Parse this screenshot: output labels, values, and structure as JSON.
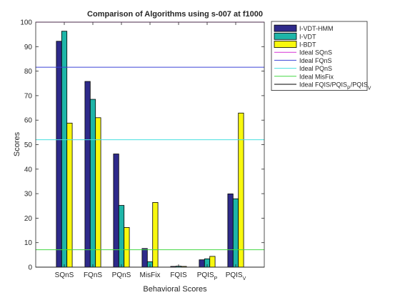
{
  "chart_data": {
    "type": "bar",
    "title": "Comparison of Algorithms using s-007 at f1000",
    "xlabel": "Behavioral Scores",
    "ylabel": "Scores",
    "ylim": [
      0,
      100
    ],
    "yticks": [
      "0",
      "10",
      "20",
      "30",
      "40",
      "50",
      "60",
      "70",
      "80",
      "90",
      "100"
    ],
    "grid": false,
    "legend_position": "outside-top-right",
    "categories": [
      {
        "base": "SQnS",
        "sub": ""
      },
      {
        "base": "FQnS",
        "sub": ""
      },
      {
        "base": "PQnS",
        "sub": ""
      },
      {
        "base": "MisFix",
        "sub": ""
      },
      {
        "base": "FQIS",
        "sub": ""
      },
      {
        "base": "PQIS",
        "sub": "P"
      },
      {
        "base": "PQIS",
        "sub": "V"
      }
    ],
    "series": [
      {
        "name": "I-VDT-HMM",
        "color": "#2e2a8a",
        "values": [
          92.2,
          75.8,
          46.2,
          7.6,
          0.3,
          3.0,
          29.9
        ]
      },
      {
        "name": "I-VDT",
        "color": "#1eb5a8",
        "values": [
          96.3,
          68.5,
          25.2,
          2.2,
          0.4,
          3.4,
          27.9
        ]
      },
      {
        "name": "I-BDT",
        "color": "#f8f80e",
        "values": [
          58.8,
          61.0,
          16.2,
          26.4,
          0.3,
          4.4,
          62.9
        ]
      }
    ],
    "reference_lines": [
      {
        "name": "Ideal SQnS",
        "label": [
          {
            "t": "Ideal SQnS",
            "sub": false
          }
        ],
        "color": "#d633d6",
        "value": 100
      },
      {
        "name": "Ideal FQnS",
        "label": [
          {
            "t": "Ideal FQnS",
            "sub": false
          }
        ],
        "color": "#3b44d8",
        "value": 81.6
      },
      {
        "name": "Ideal PQnS",
        "label": [
          {
            "t": "Ideal PQnS",
            "sub": false
          }
        ],
        "color": "#47e0e0",
        "value": 52.0
      },
      {
        "name": "Ideal MisFix",
        "label": [
          {
            "t": "Ideal MisFix",
            "sub": false
          }
        ],
        "color": "#44d844",
        "value": 7.1
      },
      {
        "name": "Ideal FQIS/PQIS_P/PQIS_V",
        "label": [
          {
            "t": "Ideal FQIS/PQIS",
            "sub": false
          },
          {
            "t": "P",
            "sub": true
          },
          {
            "t": "/PQIS",
            "sub": false
          },
          {
            "t": "V",
            "sub": true
          }
        ],
        "color": "#000000",
        "value": 0
      }
    ]
  }
}
